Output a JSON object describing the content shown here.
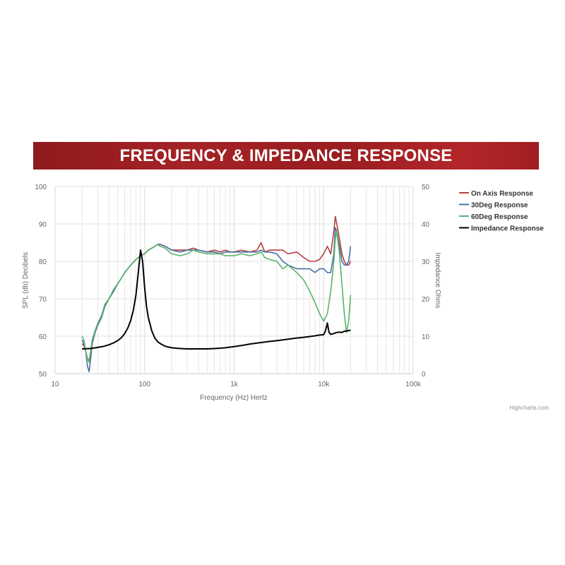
{
  "banner": {
    "title": "FREQUENCY & IMPEDANCE RESPONSE"
  },
  "credit": "Highcharts.com",
  "chart_data": {
    "type": "line",
    "xlabel": "Frequency (Hz) Hertz",
    "ylabel": "SPL (db) Decibels",
    "y2label": "Impedance Ohms",
    "xscale": "log",
    "xlim": [
      10,
      100000
    ],
    "ylim": [
      50,
      100
    ],
    "y2lim": [
      0,
      50
    ],
    "x_ticks": [
      10,
      100,
      1000,
      10000,
      100000
    ],
    "x_tick_labels": [
      "10",
      "100",
      "1k",
      "10k",
      "100k"
    ],
    "y_ticks": [
      50,
      60,
      70,
      80,
      90,
      100
    ],
    "y2_ticks": [
      0,
      10,
      20,
      30,
      40,
      50
    ],
    "grid": true,
    "legend_position": "right",
    "series": [
      {
        "name": "On Axis Response",
        "axis": "left",
        "color": "#b5403f",
        "points": [
          [
            20,
            58
          ],
          [
            21,
            57.5
          ],
          [
            22,
            56
          ],
          [
            23,
            54
          ],
          [
            24,
            53.5
          ],
          [
            25,
            56
          ],
          [
            26,
            59
          ],
          [
            28,
            61.5
          ],
          [
            30,
            63
          ],
          [
            33,
            65
          ],
          [
            36,
            68
          ],
          [
            40,
            70
          ],
          [
            45,
            72
          ],
          [
            50,
            74
          ],
          [
            55,
            75.5
          ],
          [
            60,
            77
          ],
          [
            70,
            79
          ],
          [
            80,
            80.5
          ],
          [
            90,
            81.5
          ],
          [
            100,
            82
          ],
          [
            110,
            83
          ],
          [
            120,
            83.5
          ],
          [
            130,
            84
          ],
          [
            140,
            84.5
          ],
          [
            150,
            84.5
          ],
          [
            170,
            84
          ],
          [
            200,
            83
          ],
          [
            250,
            83
          ],
          [
            300,
            83
          ],
          [
            350,
            83.5
          ],
          [
            400,
            83
          ],
          [
            500,
            82.5
          ],
          [
            600,
            83
          ],
          [
            700,
            82.5
          ],
          [
            800,
            83
          ],
          [
            900,
            82.5
          ],
          [
            1000,
            82.5
          ],
          [
            1200,
            83
          ],
          [
            1500,
            82.5
          ],
          [
            1800,
            83
          ],
          [
            2000,
            85
          ],
          [
            2200,
            82.5
          ],
          [
            2500,
            83
          ],
          [
            3000,
            83
          ],
          [
            3500,
            83
          ],
          [
            4000,
            82
          ],
          [
            5000,
            82.5
          ],
          [
            6000,
            81
          ],
          [
            7000,
            80
          ],
          [
            8000,
            80
          ],
          [
            9000,
            80.5
          ],
          [
            10000,
            82
          ],
          [
            11000,
            84
          ],
          [
            12000,
            82
          ],
          [
            13000,
            88
          ],
          [
            13500,
            92
          ],
          [
            14000,
            90
          ],
          [
            15000,
            86
          ],
          [
            16000,
            82
          ],
          [
            17000,
            80
          ],
          [
            18000,
            79
          ],
          [
            19000,
            79
          ],
          [
            20000,
            80
          ]
        ]
      },
      {
        "name": "30Deg Response",
        "axis": "left",
        "color": "#4a6fa5",
        "points": [
          [
            20,
            59
          ],
          [
            21,
            58
          ],
          [
            22,
            56
          ],
          [
            23,
            52
          ],
          [
            24,
            50.5
          ],
          [
            25,
            54
          ],
          [
            26,
            58
          ],
          [
            28,
            61
          ],
          [
            30,
            63
          ],
          [
            33,
            65
          ],
          [
            36,
            68
          ],
          [
            40,
            70
          ],
          [
            45,
            72
          ],
          [
            50,
            74
          ],
          [
            55,
            75.5
          ],
          [
            60,
            77
          ],
          [
            70,
            79
          ],
          [
            80,
            80.5
          ],
          [
            90,
            81.5
          ],
          [
            100,
            82
          ],
          [
            110,
            83
          ],
          [
            120,
            83.5
          ],
          [
            130,
            84
          ],
          [
            140,
            84.5
          ],
          [
            150,
            84.5
          ],
          [
            170,
            84
          ],
          [
            200,
            83
          ],
          [
            250,
            82.5
          ],
          [
            300,
            83
          ],
          [
            350,
            83
          ],
          [
            400,
            83
          ],
          [
            500,
            82.5
          ],
          [
            600,
            82.5
          ],
          [
            700,
            82
          ],
          [
            800,
            82.5
          ],
          [
            900,
            82.5
          ],
          [
            1000,
            82.5
          ],
          [
            1200,
            82.5
          ],
          [
            1500,
            82.5
          ],
          [
            1800,
            82.5
          ],
          [
            2000,
            83
          ],
          [
            2200,
            82.5
          ],
          [
            2500,
            82.5
          ],
          [
            3000,
            82
          ],
          [
            3500,
            80
          ],
          [
            4000,
            79
          ],
          [
            5000,
            78
          ],
          [
            6000,
            78
          ],
          [
            7000,
            78
          ],
          [
            8000,
            77
          ],
          [
            9000,
            78
          ],
          [
            10000,
            78
          ],
          [
            11000,
            77
          ],
          [
            12000,
            77
          ],
          [
            13000,
            82
          ],
          [
            13500,
            89
          ],
          [
            14000,
            88
          ],
          [
            15000,
            84
          ],
          [
            16000,
            80
          ],
          [
            17000,
            79
          ],
          [
            18000,
            79
          ],
          [
            19000,
            80
          ],
          [
            20000,
            84
          ]
        ]
      },
      {
        "name": "60Deg Response",
        "axis": "left",
        "color": "#5ab46a",
        "points": [
          [
            20,
            60
          ],
          [
            21,
            59
          ],
          [
            22,
            56
          ],
          [
            23,
            54
          ],
          [
            24,
            53
          ],
          [
            25,
            56
          ],
          [
            26,
            59
          ],
          [
            28,
            61.5
          ],
          [
            30,
            63.5
          ],
          [
            33,
            65.5
          ],
          [
            36,
            68.5
          ],
          [
            40,
            70
          ],
          [
            45,
            72.5
          ],
          [
            50,
            74
          ],
          [
            55,
            75.5
          ],
          [
            60,
            77
          ],
          [
            70,
            79
          ],
          [
            80,
            80.5
          ],
          [
            90,
            81.5
          ],
          [
            100,
            82
          ],
          [
            110,
            83
          ],
          [
            120,
            83.5
          ],
          [
            130,
            84
          ],
          [
            140,
            84.5
          ],
          [
            150,
            84
          ],
          [
            170,
            83.5
          ],
          [
            200,
            82
          ],
          [
            250,
            81.5
          ],
          [
            300,
            82
          ],
          [
            350,
            83
          ],
          [
            400,
            82.5
          ],
          [
            500,
            82
          ],
          [
            600,
            82
          ],
          [
            700,
            82
          ],
          [
            800,
            81.5
          ],
          [
            900,
            81.5
          ],
          [
            1000,
            81.5
          ],
          [
            1200,
            82
          ],
          [
            1500,
            81.5
          ],
          [
            1800,
            82
          ],
          [
            2000,
            82.5
          ],
          [
            2200,
            81
          ],
          [
            2500,
            80.5
          ],
          [
            3000,
            80
          ],
          [
            3500,
            78
          ],
          [
            4000,
            79
          ],
          [
            5000,
            77
          ],
          [
            6000,
            75
          ],
          [
            7000,
            72
          ],
          [
            8000,
            69
          ],
          [
            9000,
            66
          ],
          [
            10000,
            64
          ],
          [
            11000,
            66
          ],
          [
            12000,
            72
          ],
          [
            13000,
            80
          ],
          [
            13500,
            86
          ],
          [
            14000,
            88
          ],
          [
            15000,
            82
          ],
          [
            16000,
            74
          ],
          [
            17000,
            66
          ],
          [
            18000,
            61
          ],
          [
            19000,
            64
          ],
          [
            20000,
            71
          ]
        ]
      },
      {
        "name": "Impedance Response",
        "axis": "right",
        "color": "#000000",
        "points": [
          [
            20,
            6.6
          ],
          [
            25,
            6.7
          ],
          [
            30,
            7
          ],
          [
            35,
            7.3
          ],
          [
            40,
            7.7
          ],
          [
            45,
            8.2
          ],
          [
            50,
            8.8
          ],
          [
            55,
            9.6
          ],
          [
            60,
            10.7
          ],
          [
            65,
            12.2
          ],
          [
            70,
            14.2
          ],
          [
            75,
            17
          ],
          [
            80,
            21
          ],
          [
            85,
            27
          ],
          [
            90,
            33
          ],
          [
            95,
            30
          ],
          [
            100,
            23
          ],
          [
            105,
            18
          ],
          [
            110,
            15
          ],
          [
            120,
            11.5
          ],
          [
            130,
            9.5
          ],
          [
            140,
            8.5
          ],
          [
            150,
            8
          ],
          [
            170,
            7.3
          ],
          [
            200,
            6.9
          ],
          [
            250,
            6.7
          ],
          [
            300,
            6.6
          ],
          [
            400,
            6.6
          ],
          [
            500,
            6.6
          ],
          [
            600,
            6.7
          ],
          [
            700,
            6.8
          ],
          [
            800,
            6.9
          ],
          [
            1000,
            7.2
          ],
          [
            1200,
            7.5
          ],
          [
            1500,
            7.9
          ],
          [
            2000,
            8.3
          ],
          [
            2500,
            8.6
          ],
          [
            3000,
            8.8
          ],
          [
            4000,
            9.2
          ],
          [
            5000,
            9.5
          ],
          [
            6000,
            9.7
          ],
          [
            7000,
            9.9
          ],
          [
            8000,
            10.1
          ],
          [
            9000,
            10.3
          ],
          [
            10000,
            10.4
          ],
          [
            10500,
            11.5
          ],
          [
            11000,
            13.5
          ],
          [
            11500,
            11
          ],
          [
            12000,
            10.5
          ],
          [
            13000,
            10.7
          ],
          [
            14000,
            11
          ],
          [
            15000,
            11.1
          ],
          [
            16000,
            11
          ],
          [
            17000,
            11.3
          ],
          [
            18000,
            11.4
          ],
          [
            19000,
            11.5
          ],
          [
            20000,
            11.6
          ]
        ]
      }
    ]
  }
}
